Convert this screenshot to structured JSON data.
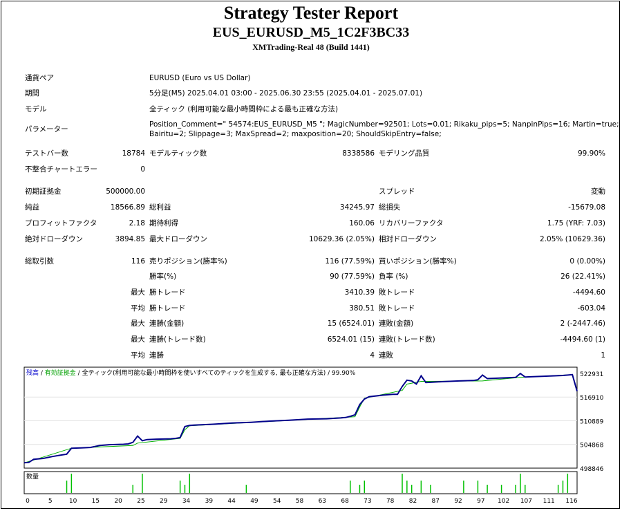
{
  "header": {
    "title": "Strategy Tester Report",
    "subtitle": "EUS_EURUSD_M5_1C2F3BC33",
    "server": "XMTrading-Real 48 (Build 1441)"
  },
  "info": {
    "symbol_label": "通貨ペア",
    "symbol_value": "EURUSD (Euro vs US Dollar)",
    "period_label": "期間",
    "period_value": "5分足(M5) 2025.04.01 03:00 - 2025.06.30 23:55 (2025.04.01 - 2025.07.01)",
    "model_label": "モデル",
    "model_value": "全ティック (利用可能な最小時間枠による最も正確な方法)",
    "params_label": "パラメーター",
    "params_line1": "Position_Comment=\" 54574:EUS_EURUSD_M5 \"; MagicNumber=92501; Lots=0.01; Rikaku_pips=5; NanpinPips=16; Martin=true;",
    "params_line2": "Bairitu=2; Slippage=3; MaxSpread=2; maxposition=20; ShouldSkipEntry=false;"
  },
  "stats": {
    "bars_label": "テストバー数",
    "bars_value": "18784",
    "ticks_label": "モデルティック数",
    "ticks_value": "8338586",
    "quality_label": "モデリング品質",
    "quality_value": "99.90%",
    "mismatch_label": "不整合チャートエラー",
    "mismatch_value": "0",
    "deposit_label": "初期証拠金",
    "deposit_value": "500000.00",
    "spread_label": "スプレッド",
    "spread_value": "変動",
    "net_label": "純益",
    "net_value": "18566.89",
    "gross_profit_label": "総利益",
    "gross_profit_value": "34245.97",
    "gross_loss_label": "総損失",
    "gross_loss_value": "-15679.08",
    "pf_label": "プロフィットファクタ",
    "pf_value": "2.18",
    "expected_label": "期待利得",
    "expected_value": "160.06",
    "recovery_label": "リカバリーファクタ",
    "recovery_value": "1.75 (YRF: 7.03)",
    "abs_dd_label": "絶対ドローダウン",
    "abs_dd_value": "3894.85",
    "max_dd_label": "最大ドローダウン",
    "max_dd_value": "10629.36 (2.05%)",
    "rel_dd_label": "相対ドローダウン",
    "rel_dd_value": "2.05% (10629.36)"
  },
  "trades": {
    "total_label": "総取引数",
    "total_value": "116",
    "short_label": "売りポジション(勝率%)",
    "short_value": "116 (77.59%)",
    "long_label": "買いポジション(勝率%)",
    "long_value": "0 (0.00%)",
    "winrate_label": "勝率(%)",
    "winrate_value": "90 (77.59%)",
    "lossrate_label": "負率 (%)",
    "lossrate_value": "26 (22.41%)",
    "max_label": "最大",
    "avg_label": "平均",
    "win_trade_label": "勝トレード",
    "loss_trade_label": "敗トレード",
    "max_win_value": "3410.39",
    "max_loss_value": "-4494.60",
    "avg_win_value": "380.51",
    "avg_loss_value": "-603.04",
    "consec_win_amount_label": "連勝(金額)",
    "consec_win_amount_value": "15 (6524.01)",
    "consec_loss_amount_label": "連敗(金額)",
    "consec_loss_amount_value": "2 (-2447.46)",
    "consec_win_count_label": "連勝(トレード数)",
    "consec_win_count_value": "6524.01 (15)",
    "consec_loss_count_label": "連敗(トレード数)",
    "consec_loss_count_value": "-4494.60 (1)",
    "avg_consec_win_label": "連勝",
    "avg_consec_win_value": "4",
    "avg_consec_loss_label": "連敗",
    "avg_consec_loss_value": "1"
  },
  "chart_data": {
    "type": "line",
    "legend": {
      "balance": "残高",
      "equity": "有効証拠金",
      "tick": "全ティック(利用可能な最小時間枠を使いすべてのティックを生成する, 最も正確な方法)",
      "quality": "99.90%"
    },
    "colors": {
      "balance": "#00008b",
      "equity": "#00b000",
      "volume": "#00c000",
      "legend_balance": "#0000cc",
      "legend_equity": "#00a000"
    },
    "ylim": [
      498846,
      524500
    ],
    "y_ticks": [
      "522931",
      "516910",
      "510889",
      "504868",
      "498846"
    ],
    "x_ticks": [
      "0",
      "5",
      "10",
      "15",
      "20",
      "25",
      "29",
      "34",
      "39",
      "44",
      "49",
      "54",
      "58",
      "63",
      "68",
      "73",
      "78",
      "82",
      "87",
      "92",
      "97",
      "102",
      "107",
      "111",
      "116"
    ],
    "xlim": [
      0,
      117
    ],
    "balance": [
      [
        0,
        500200
      ],
      [
        1,
        500300
      ],
      [
        2,
        501100
      ],
      [
        4,
        501300
      ],
      [
        6,
        501800
      ],
      [
        8,
        502200
      ],
      [
        9,
        502400
      ],
      [
        10,
        503900
      ],
      [
        12,
        504000
      ],
      [
        14,
        504100
      ],
      [
        16,
        504600
      ],
      [
        18,
        504800
      ],
      [
        21,
        504900
      ],
      [
        22,
        505000
      ],
      [
        23,
        505400
      ],
      [
        24,
        507000
      ],
      [
        25,
        505800
      ],
      [
        26,
        506100
      ],
      [
        28,
        506200
      ],
      [
        31,
        506300
      ],
      [
        32,
        506400
      ],
      [
        33,
        506600
      ],
      [
        34,
        509400
      ],
      [
        35,
        509700
      ],
      [
        36,
        509800
      ],
      [
        40,
        510000
      ],
      [
        44,
        510300
      ],
      [
        48,
        510500
      ],
      [
        52,
        510800
      ],
      [
        56,
        511000
      ],
      [
        60,
        511300
      ],
      [
        64,
        511400
      ],
      [
        67,
        511600
      ],
      [
        68,
        511700
      ],
      [
        69,
        512000
      ],
      [
        70,
        512400
      ],
      [
        71,
        515000
      ],
      [
        72,
        516400
      ],
      [
        73,
        517000
      ],
      [
        76,
        517400
      ],
      [
        78,
        517600
      ],
      [
        79,
        517600
      ],
      [
        80,
        519600
      ],
      [
        81,
        521200
      ],
      [
        82,
        521000
      ],
      [
        83,
        520200
      ],
      [
        84,
        522300
      ],
      [
        85,
        520600
      ],
      [
        88,
        520800
      ],
      [
        92,
        521000
      ],
      [
        95,
        521100
      ],
      [
        96,
        521300
      ],
      [
        97,
        522500
      ],
      [
        98,
        521600
      ],
      [
        102,
        521800
      ],
      [
        104,
        521900
      ],
      [
        105,
        522900
      ],
      [
        106,
        522000
      ],
      [
        110,
        522200
      ],
      [
        114,
        522400
      ],
      [
        116,
        522600
      ],
      [
        117,
        518400
      ]
    ],
    "equity": [
      [
        0,
        500200
      ],
      [
        2,
        500900
      ],
      [
        10,
        503900
      ],
      [
        23,
        504600
      ],
      [
        24,
        505200
      ],
      [
        33,
        506400
      ],
      [
        34,
        508600
      ],
      [
        35,
        509600
      ],
      [
        70,
        511900
      ],
      [
        71,
        514400
      ],
      [
        72,
        516600
      ],
      [
        80,
        518600
      ],
      [
        81,
        520200
      ],
      [
        84,
        520900
      ],
      [
        97,
        521000
      ],
      [
        105,
        521900
      ],
      [
        116,
        522600
      ]
    ],
    "volume_label": "数量",
    "volume_x": [
      9,
      10,
      23,
      25,
      33,
      34,
      35,
      47,
      69,
      71,
      72,
      80,
      81,
      82,
      84,
      86,
      93,
      96,
      98,
      101,
      104,
      105,
      106,
      113,
      114,
      115
    ]
  }
}
